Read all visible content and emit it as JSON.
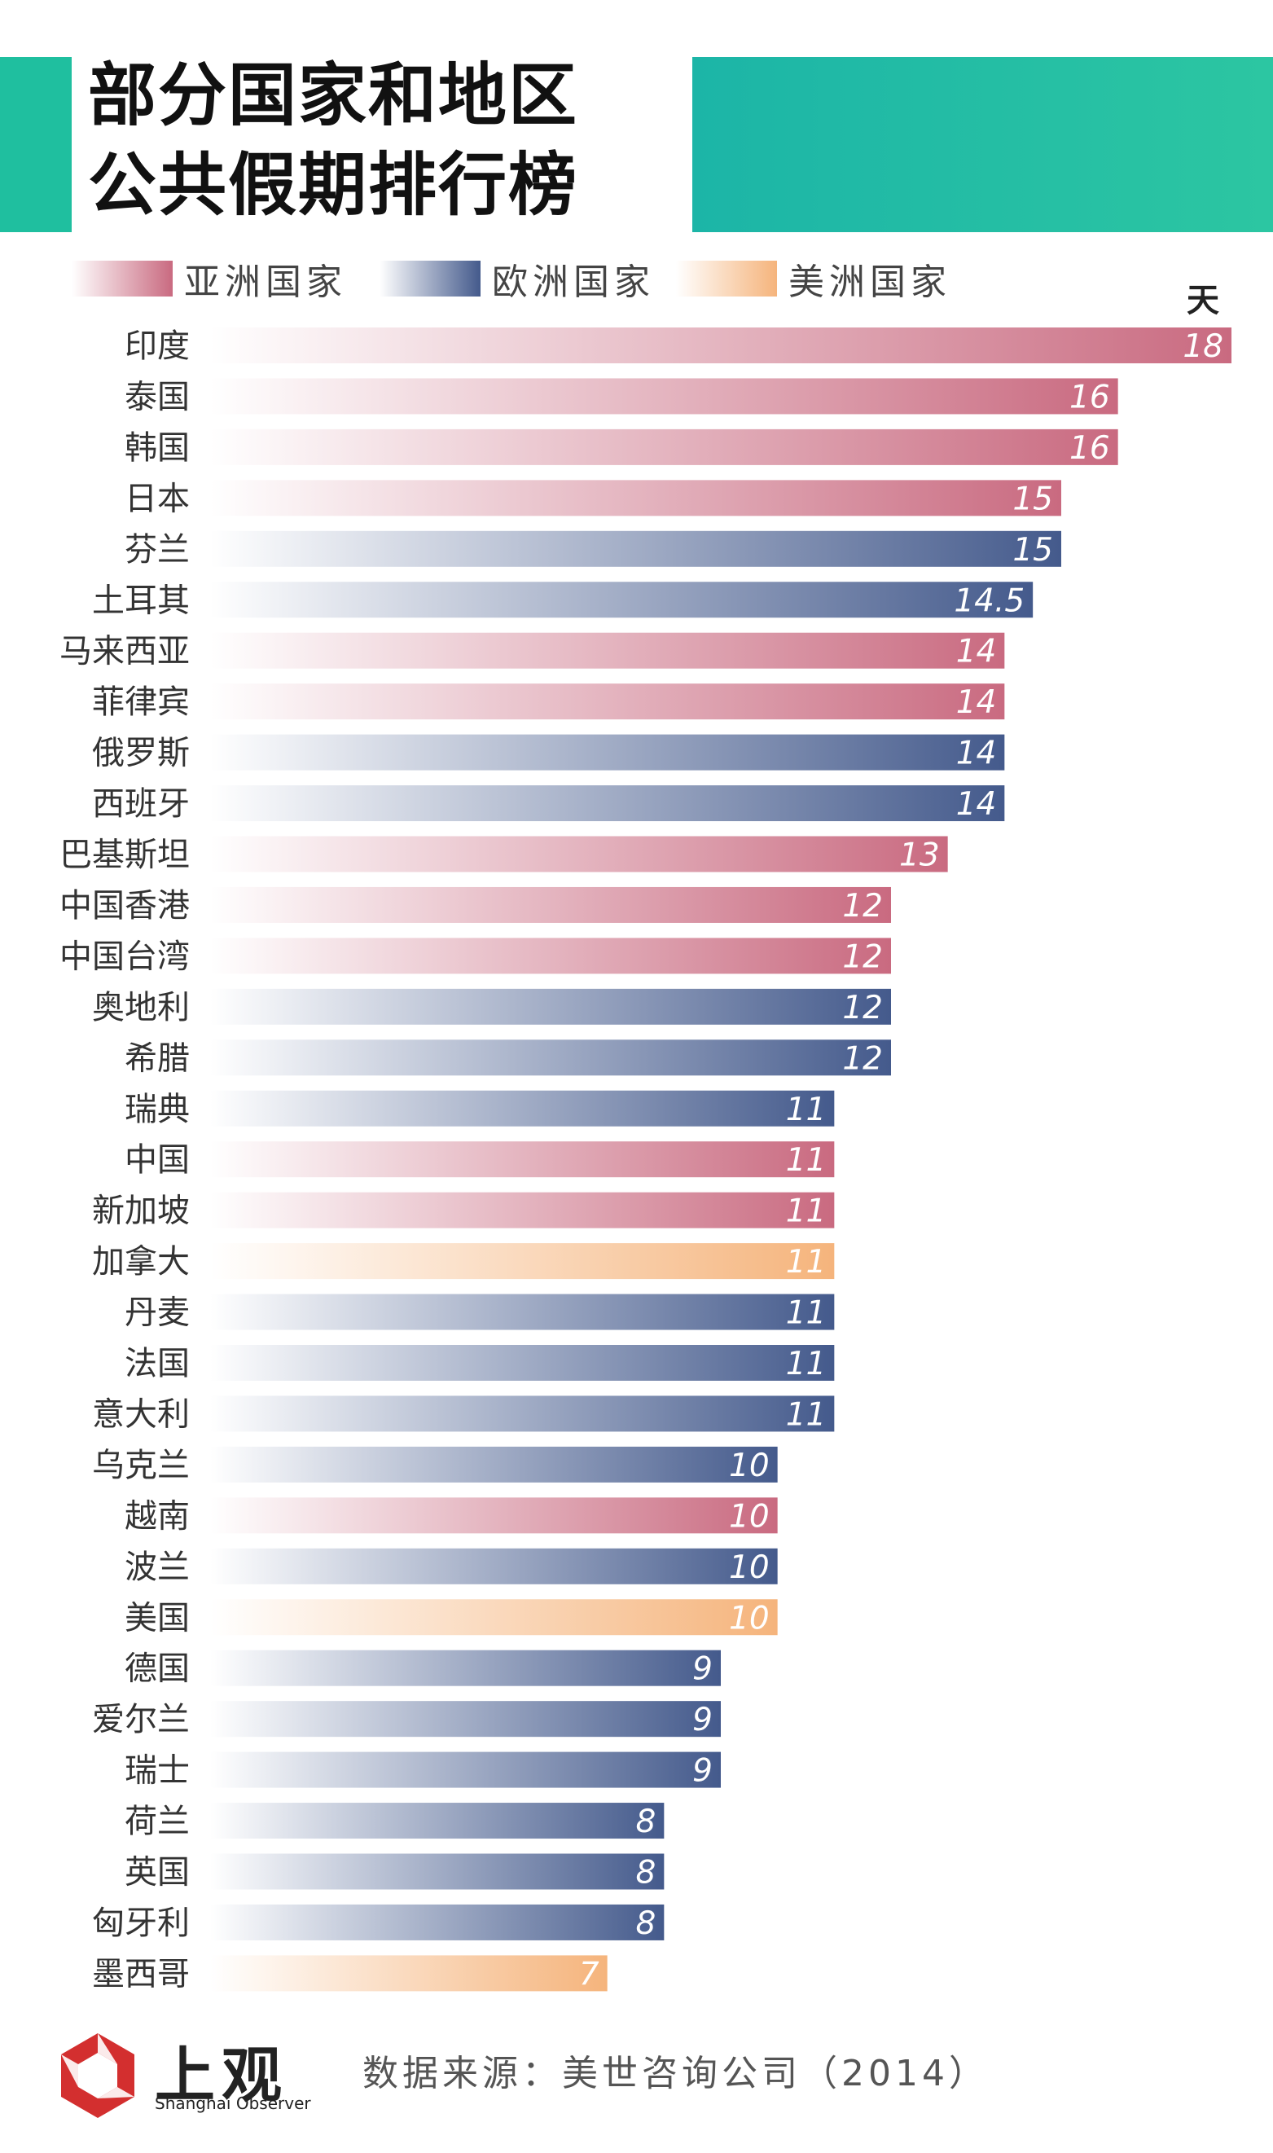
{
  "title_lines": [
    "部分国家和地区",
    "公共假期排行榜"
  ],
  "legend": [
    {
      "label": "亚洲国家",
      "color": "#c96a80"
    },
    {
      "label": "欧洲国家",
      "color": "#445a8c"
    },
    {
      "label": "美洲国家",
      "color": "#f5b47c"
    }
  ],
  "unit": "天",
  "source": "数据来源：美世咨询公司（2014）",
  "brand": {
    "cn": "上观",
    "en": "Shanghai Observer"
  },
  "highlight_color": "#d9454f",
  "chart_data": {
    "type": "bar",
    "orientation": "horizontal",
    "xlim": [
      0,
      18
    ],
    "grid": false,
    "categories": [
      "印度",
      "泰国",
      "韩国",
      "日本",
      "芬兰",
      "土耳其",
      "马来西亚",
      "菲律宾",
      "俄罗斯",
      "西班牙",
      "巴基斯坦",
      "中国香港",
      "中国台湾",
      "奥地利",
      "希腊",
      "瑞典",
      "中国",
      "新加坡",
      "加拿大",
      "丹麦",
      "法国",
      "意大利",
      "乌克兰",
      "越南",
      "波兰",
      "美国",
      "德国",
      "爱尔兰",
      "瑞士",
      "荷兰",
      "英国",
      "匈牙利",
      "墨西哥"
    ],
    "values": [
      18,
      16,
      16,
      15,
      15,
      14.5,
      14,
      14,
      14,
      14,
      13,
      12,
      12,
      12,
      12,
      11,
      11,
      11,
      11,
      11,
      11,
      11,
      10,
      10,
      10,
      10,
      9,
      9,
      9,
      8,
      8,
      8,
      7
    ],
    "labels": [
      "18",
      "16",
      "16",
      "15",
      "15",
      "14.5",
      "14",
      "14",
      "14",
      "14",
      "13",
      "12",
      "12",
      "12",
      "12",
      "11",
      "11",
      "11",
      "11",
      "11",
      "11",
      "11",
      "10",
      "10",
      "10",
      "10",
      "9",
      "9",
      "9",
      "8",
      "8",
      "8",
      "7"
    ],
    "region": [
      "asia",
      "asia",
      "asia",
      "asia",
      "europe",
      "europe",
      "asia",
      "asia",
      "europe",
      "europe",
      "asia",
      "asia",
      "asia",
      "europe",
      "europe",
      "europe",
      "asia",
      "asia",
      "america",
      "europe",
      "europe",
      "europe",
      "europe",
      "asia",
      "europe",
      "america",
      "europe",
      "europe",
      "europe",
      "europe",
      "europe",
      "europe",
      "america"
    ],
    "highlight": "中国"
  }
}
